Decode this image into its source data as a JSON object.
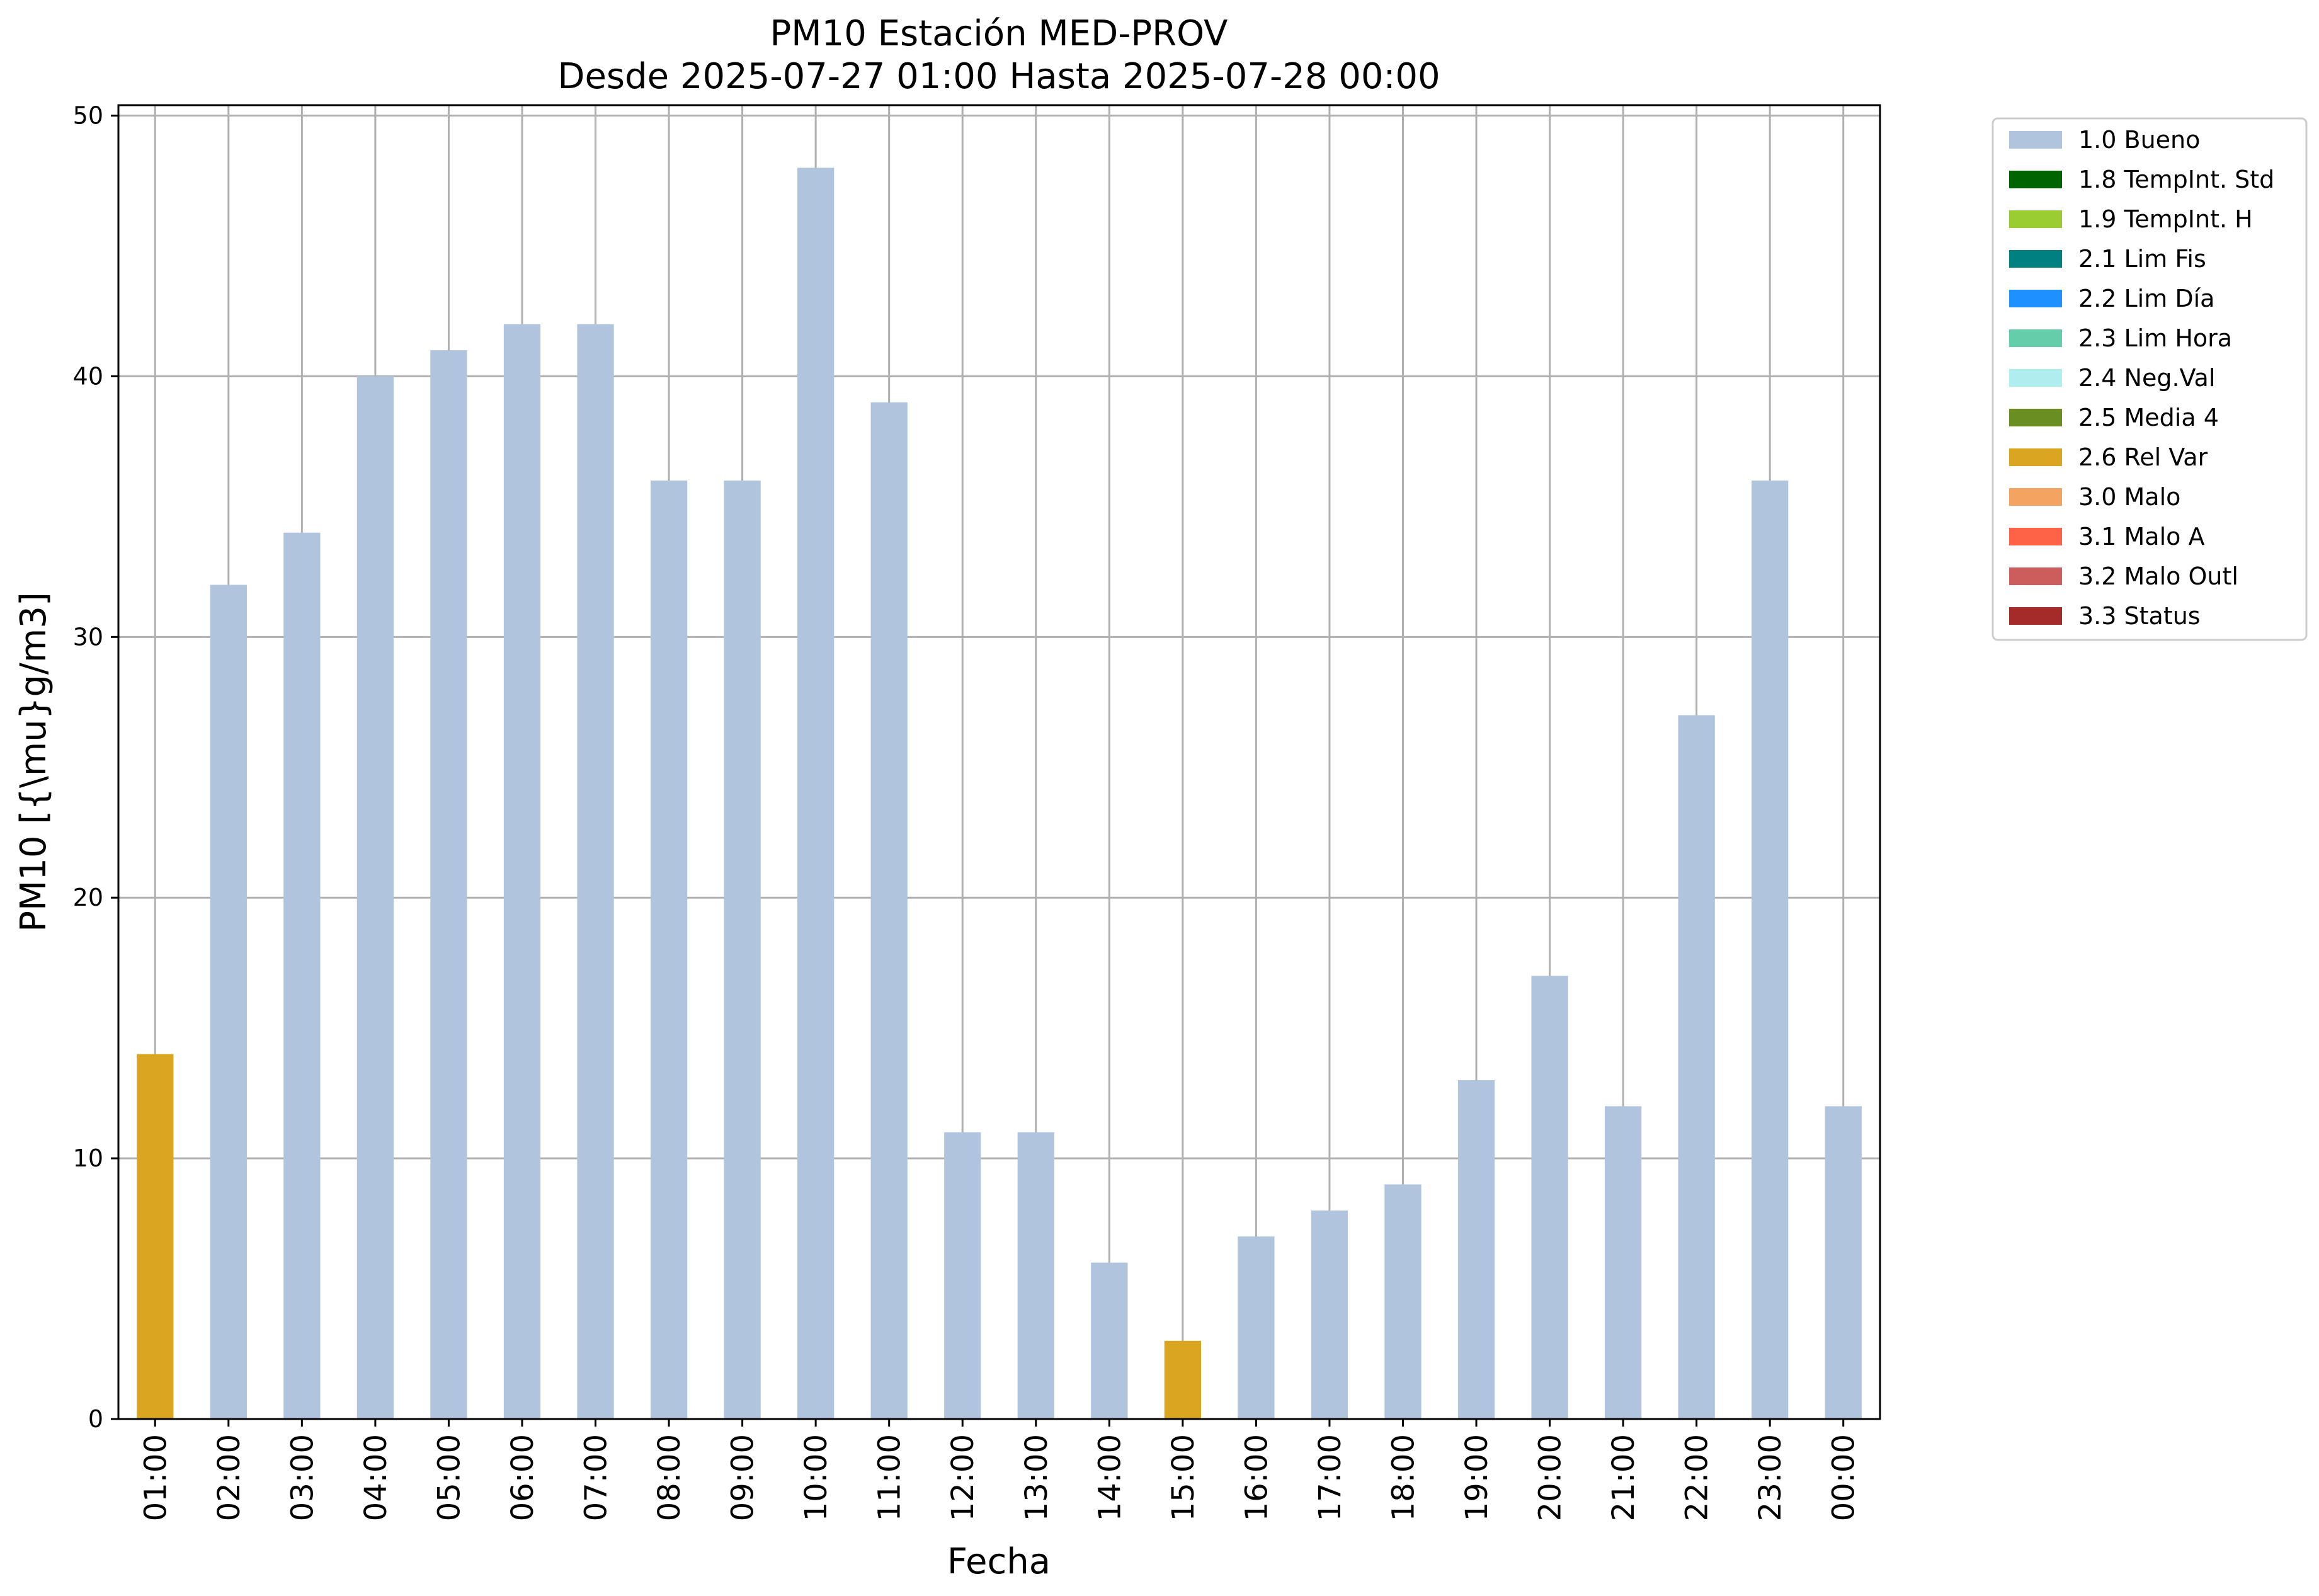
{
  "chart_data": {
    "type": "bar",
    "title": "PM10 Estación MED-PROV",
    "subtitle": "Desde 2025-07-27 01:00 Hasta 2025-07-28 00:00",
    "xlabel": "Fecha",
    "ylabel": "PM10 [{\\mu}g/m3]",
    "ylim": [
      0,
      50.4
    ],
    "yticks": [
      0,
      10,
      20,
      30,
      40,
      50
    ],
    "grid": true,
    "legend_placement": "outside-top-right",
    "categories": [
      "01:00",
      "02:00",
      "03:00",
      "04:00",
      "05:00",
      "06:00",
      "07:00",
      "08:00",
      "09:00",
      "10:00",
      "11:00",
      "12:00",
      "13:00",
      "14:00",
      "15:00",
      "16:00",
      "17:00",
      "18:00",
      "19:00",
      "20:00",
      "21:00",
      "22:00",
      "23:00",
      "00:00"
    ],
    "values": [
      14,
      32,
      34,
      40,
      41,
      42,
      42,
      36,
      36,
      48,
      39,
      11,
      11,
      6,
      3,
      7,
      8,
      9,
      13,
      17,
      12,
      27,
      36,
      12
    ],
    "flags": [
      "2.6 Rel Var",
      "1.0 Bueno",
      "1.0 Bueno",
      "1.0 Bueno",
      "1.0 Bueno",
      "1.0 Bueno",
      "1.0 Bueno",
      "1.0 Bueno",
      "1.0 Bueno",
      "1.0 Bueno",
      "1.0 Bueno",
      "1.0 Bueno",
      "1.0 Bueno",
      "1.0 Bueno",
      "2.6 Rel Var",
      "1.0 Bueno",
      "1.0 Bueno",
      "1.0 Bueno",
      "1.0 Bueno",
      "1.0 Bueno",
      "1.0 Bueno",
      "1.0 Bueno",
      "1.0 Bueno",
      "1.0 Bueno"
    ],
    "legend": [
      {
        "label": "1.0 Bueno",
        "color": "#b0c4de"
      },
      {
        "label": "1.8 TempInt. Std",
        "color": "#006400"
      },
      {
        "label": "1.9 TempInt. H",
        "color": "#9acd32"
      },
      {
        "label": "2.1 Lim Fis",
        "color": "#008080"
      },
      {
        "label": "2.2 Lim Día",
        "color": "#1e90ff"
      },
      {
        "label": "2.3 Lim Hora",
        "color": "#66cdaa"
      },
      {
        "label": "2.4 Neg.Val",
        "color": "#afeeee"
      },
      {
        "label": "2.5 Media 4",
        "color": "#6b8e23"
      },
      {
        "label": "2.6 Rel Var",
        "color": "#daa520"
      },
      {
        "label": "3.0 Malo",
        "color": "#f4a460"
      },
      {
        "label": "3.1 Malo A",
        "color": "#ff6347"
      },
      {
        "label": "3.2 Malo Outl",
        "color": "#cd5c5c"
      },
      {
        "label": "3.3 Status",
        "color": "#a52a2a"
      }
    ]
  }
}
